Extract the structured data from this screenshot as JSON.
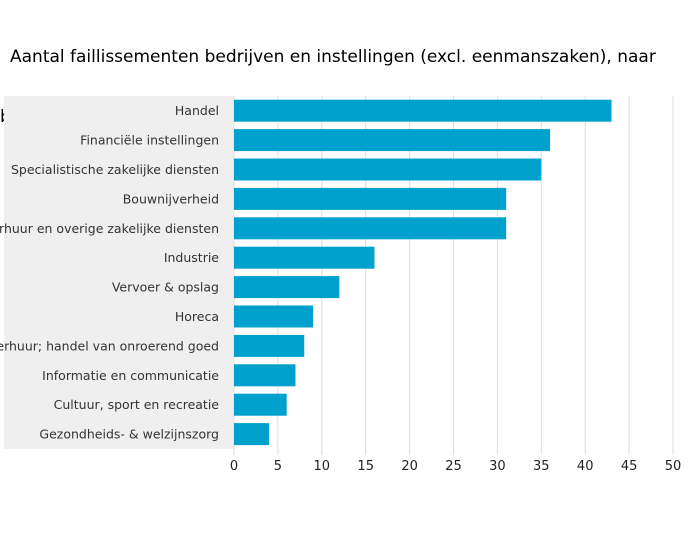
{
  "title_line1": "Aantal faillissementen bedrijven en instellingen (excl. eenmanszaken), naar",
  "title_line2": "bedrijfstak",
  "colors": {
    "bar": "#00a1cd",
    "label_band": "#efefef",
    "grid": "#dcdcdc",
    "text": "#333333"
  },
  "chart_data": {
    "type": "bar",
    "orientation": "horizontal",
    "title": "Aantal faillissementen bedrijven en instellingen (excl. eenmanszaken), naar bedrijfstak",
    "categories": [
      "Handel",
      "Financiële instellingen",
      "Specialistische zakelijke diensten",
      "Bouwnijverheid",
      "Verhuur en overige zakelijke diensten",
      "Industrie",
      "Vervoer & opslag",
      "Horeca",
      "Verhuur; handel van onroerend goed",
      "Informatie en communicatie",
      "Cultuur, sport en recreatie",
      "Gezondheids- & welzijnszorg"
    ],
    "values": [
      43,
      36,
      35,
      31,
      31,
      16,
      12,
      9,
      8,
      7,
      6,
      4
    ],
    "xlim": [
      0,
      50
    ],
    "xticks": [
      0,
      5,
      10,
      15,
      20,
      25,
      30,
      35,
      40,
      45,
      50
    ],
    "grid": true,
    "legend": "none"
  }
}
